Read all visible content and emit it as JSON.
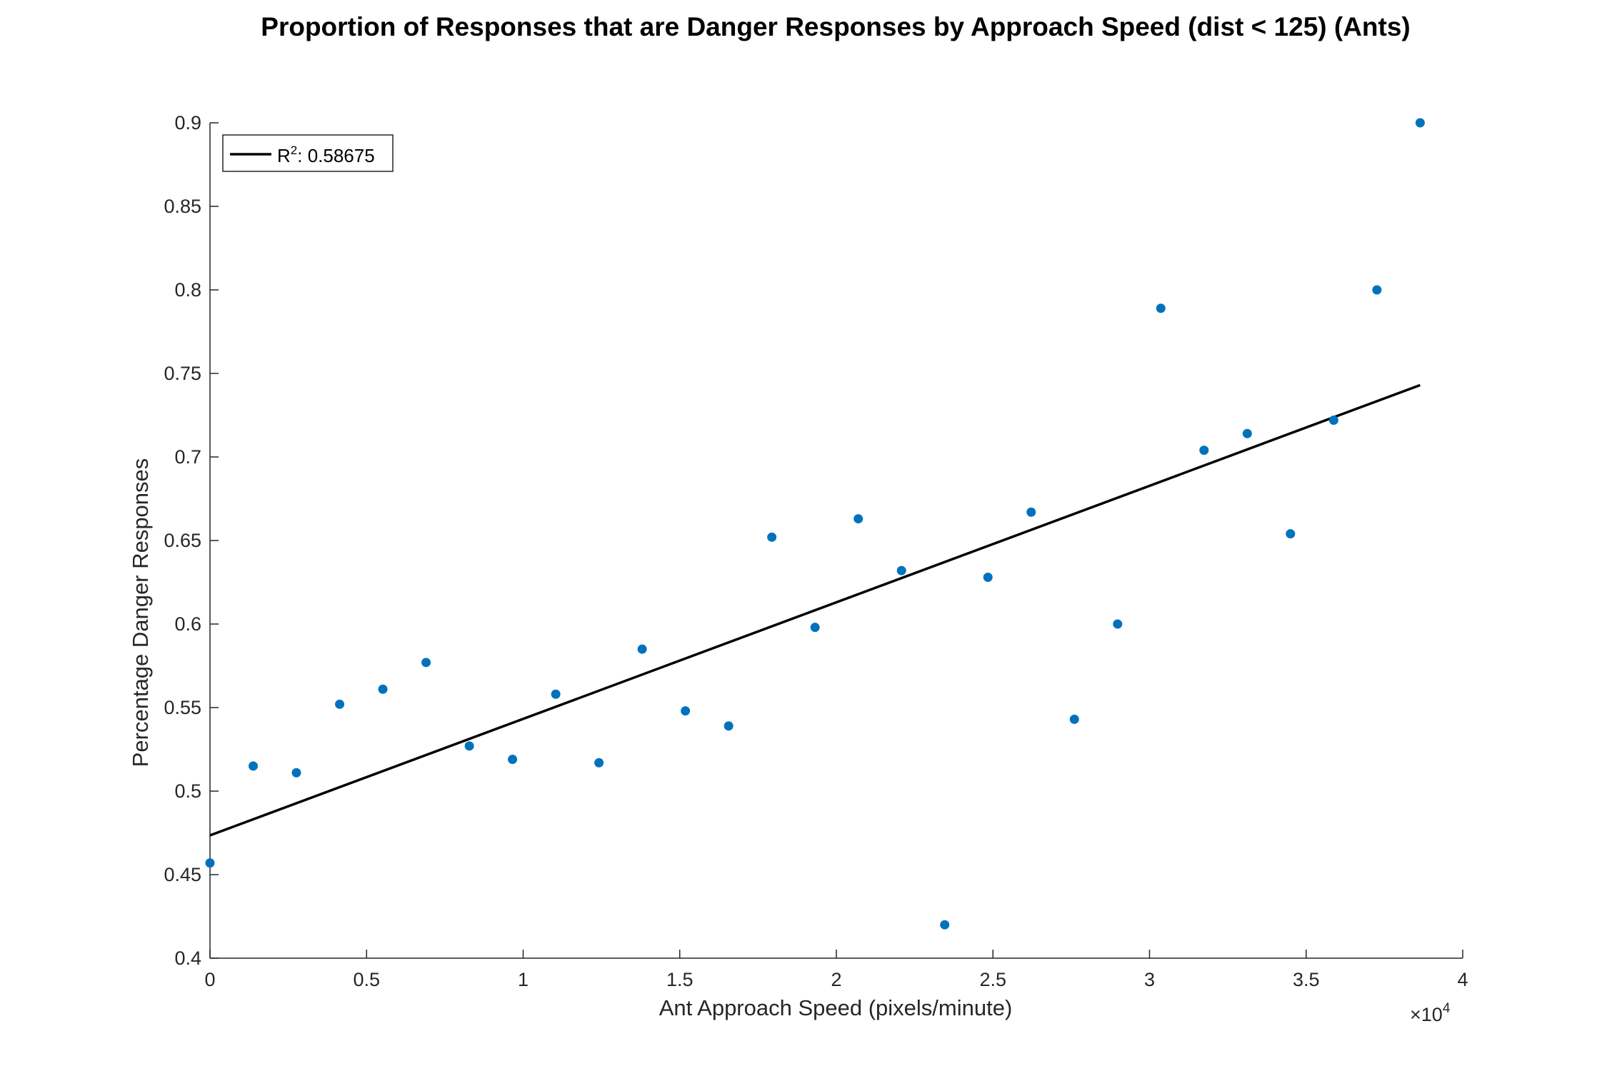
{
  "chart_data": {
    "type": "scatter",
    "title": "Proportion of Responses that are Danger Responses by Approach Speed (dist < 125) (Ants)",
    "xlabel": "Ant Approach Speed (pixels/minute)",
    "ylabel": "Percentage Danger Responses",
    "x_exponent_label": "×10",
    "x_exponent_power": "4",
    "xlim": [
      0,
      40000
    ],
    "ylim": [
      0.4,
      0.9
    ],
    "x_ticks": [
      0,
      5000,
      10000,
      15000,
      20000,
      25000,
      30000,
      35000,
      40000
    ],
    "x_tick_labels": [
      "0",
      "0.5",
      "1",
      "1.5",
      "2",
      "2.5",
      "3",
      "3.5",
      "4"
    ],
    "y_ticks": [
      0.4,
      0.45,
      0.5,
      0.55,
      0.6,
      0.65,
      0.7,
      0.75,
      0.8,
      0.85,
      0.9
    ],
    "y_tick_labels": [
      "0.4",
      "0.45",
      "0.5",
      "0.55",
      "0.6",
      "0.65",
      "0.7",
      "0.75",
      "0.8",
      "0.85",
      "0.9"
    ],
    "grid": false,
    "point_color": "#0072BD",
    "series": [
      {
        "x": [
          0,
          1380,
          2760,
          4140,
          5520,
          6900,
          8280,
          9660,
          11040,
          12420,
          13800,
          15180,
          16560,
          17940,
          19320,
          20700,
          22080,
          23460,
          24840,
          26220,
          27600,
          28980,
          30360,
          31740,
          33120,
          34500,
          35880,
          37260,
          38640
        ],
        "y": [
          0.457,
          0.515,
          0.511,
          0.552,
          0.561,
          0.577,
          0.527,
          0.519,
          0.558,
          0.517,
          0.585,
          0.548,
          0.539,
          0.652,
          0.598,
          0.663,
          0.632,
          0.42,
          0.628,
          0.667,
          0.543,
          0.6,
          0.789,
          0.704,
          0.714,
          0.654,
          0.722,
          0.8,
          0.9
        ]
      }
    ],
    "fit_line": {
      "x": [
        0,
        38640
      ],
      "y": [
        0.4735,
        0.743
      ],
      "color": "#000000"
    },
    "legend": {
      "position": "top-left",
      "label_prefix": "R",
      "label_power": "2",
      "label_value": ": 0.58675"
    }
  }
}
